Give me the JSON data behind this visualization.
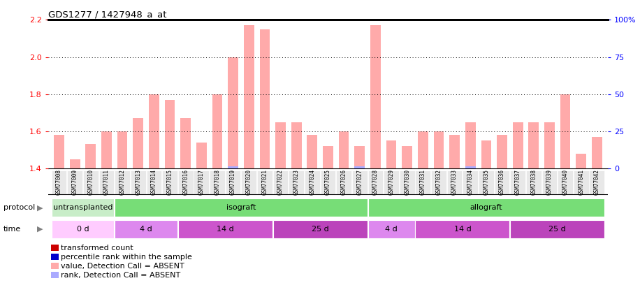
{
  "title": "GDS1277 / 1427948_a_at",
  "samples": [
    "GSM77008",
    "GSM77009",
    "GSM77010",
    "GSM77011",
    "GSM77012",
    "GSM77013",
    "GSM77014",
    "GSM77015",
    "GSM77016",
    "GSM77017",
    "GSM77018",
    "GSM77019",
    "GSM77020",
    "GSM77021",
    "GSM77022",
    "GSM77023",
    "GSM77024",
    "GSM77025",
    "GSM77026",
    "GSM77027",
    "GSM77028",
    "GSM77029",
    "GSM77030",
    "GSM77031",
    "GSM77032",
    "GSM77033",
    "GSM77034",
    "GSM77035",
    "GSM77036",
    "GSM77037",
    "GSM77038",
    "GSM77039",
    "GSM77040",
    "GSM77041",
    "GSM77042"
  ],
  "values": [
    1.58,
    1.45,
    1.53,
    1.6,
    1.6,
    1.67,
    1.8,
    1.77,
    1.67,
    1.54,
    1.8,
    2.0,
    2.17,
    2.15,
    1.65,
    1.65,
    1.58,
    1.52,
    1.6,
    1.52,
    2.17,
    1.55,
    1.52,
    1.6,
    1.6,
    1.58,
    1.65,
    1.55,
    1.58,
    1.65,
    1.65,
    1.65,
    1.8,
    1.48,
    1.57
  ],
  "bar_color": "#ffaaaa",
  "ylim_left": [
    1.4,
    2.2
  ],
  "yticks_left": [
    1.4,
    1.6,
    1.8,
    2.0,
    2.2
  ],
  "ylim_right": [
    0,
    100
  ],
  "yticks_right": [
    0,
    25,
    50,
    75,
    100
  ],
  "ytick_labels_right": [
    "0",
    "25",
    "50",
    "75",
    "100%"
  ],
  "protocol_groups": [
    {
      "label": "untransplanted",
      "start": 0,
      "end": 4,
      "color": "#c8edc8"
    },
    {
      "label": "isograft",
      "start": 4,
      "end": 20,
      "color": "#77dd77"
    },
    {
      "label": "allograft",
      "start": 20,
      "end": 35,
      "color": "#77dd77"
    }
  ],
  "time_groups": [
    {
      "label": "0 d",
      "start": 0,
      "end": 4,
      "color": "#ffccff"
    },
    {
      "label": "4 d",
      "start": 4,
      "end": 8,
      "color": "#dd88ee"
    },
    {
      "label": "14 d",
      "start": 8,
      "end": 14,
      "color": "#cc55cc"
    },
    {
      "label": "25 d",
      "start": 14,
      "end": 20,
      "color": "#bb44bb"
    },
    {
      "label": "4 d",
      "start": 20,
      "end": 23,
      "color": "#dd88ee"
    },
    {
      "label": "14 d",
      "start": 23,
      "end": 29,
      "color": "#cc55cc"
    },
    {
      "label": "25 d",
      "start": 29,
      "end": 35,
      "color": "#bb44bb"
    }
  ],
  "legend_items": [
    {
      "label": "transformed count",
      "color": "#cc0000"
    },
    {
      "label": "percentile rank within the sample",
      "color": "#0000cc"
    },
    {
      "label": "value, Detection Call = ABSENT",
      "color": "#ffaaaa"
    },
    {
      "label": "rank, Detection Call = ABSENT",
      "color": "#aaaaff"
    }
  ],
  "blue_bar_samples": [
    11,
    19,
    26
  ]
}
